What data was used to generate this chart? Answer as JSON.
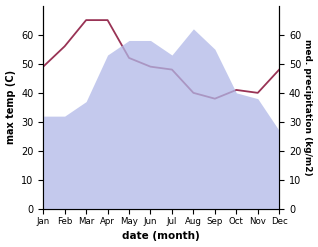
{
  "months": [
    "Jan",
    "Feb",
    "Mar",
    "Apr",
    "May",
    "Jun",
    "Jul",
    "Aug",
    "Sep",
    "Oct",
    "Nov",
    "Dec"
  ],
  "precipitation": [
    32,
    32,
    37,
    53,
    58,
    58,
    53,
    62,
    55,
    40,
    38,
    27
  ],
  "temperature": [
    49,
    56,
    65,
    65,
    52,
    49,
    48,
    40,
    38,
    41,
    40,
    48
  ],
  "precip_color": "#b0b8e8",
  "temp_color": "#993355",
  "ylabel_left": "max temp (C)",
  "ylabel_right": "med. precipitation (kg/m2)",
  "xlabel": "date (month)",
  "ylim": [
    0,
    70
  ],
  "yticks": [
    0,
    10,
    20,
    30,
    40,
    50,
    60
  ],
  "bg_color": "#ffffff"
}
